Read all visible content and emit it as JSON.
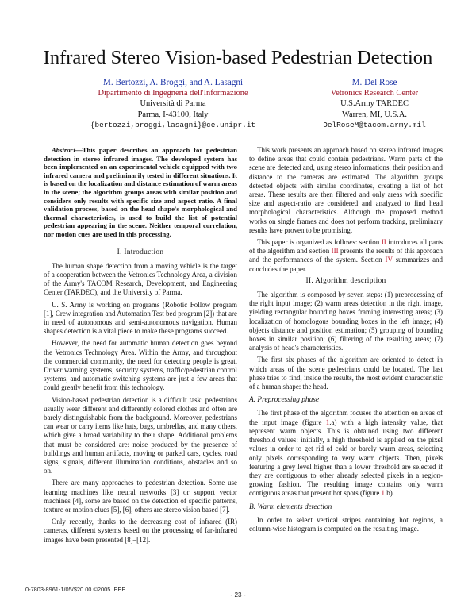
{
  "title": "Infrared Stereo Vision-based Pedestrian Detection",
  "authors_left": {
    "names": "M. Bertozzi, A. Broggi, and A. Lasagni",
    "dept": "Dipartimento di Ingegneria dell'Informazione",
    "univ": "Università di Parma",
    "city": "Parma, I-43100, Italy",
    "email": "{bertozzi,broggi,lasagni}@ce.unipr.it"
  },
  "authors_right": {
    "names": "M. Del Rose",
    "org": "Vetronics Research Center",
    "org2": "U.S.Army TARDEC",
    "city": "Warren, MI, U.S.A.",
    "email": "DelRoseM@tacom.army.mil"
  },
  "abstract": {
    "label": "Abstract",
    "text": "—This paper describes an approach for pedestrian detection in stereo infrared images. The developed system has been implemented on an experimental vehicle equipped with two infrared camera and preliminarily tested in different situations. It is based on the localization and distance estimation of warm areas in the scene; the algorithm groups areas with similar position and considers only results with specific size and aspect ratio. A final validation process, based on the head shape's morphological and thermal characteristics, is used to build the list of potential pedestrian appearing in the scene. Neither temporal correlation, nor motion cues are used in this processing."
  },
  "sec1": "I. Introduction",
  "intro": [
    "The human shape detection from a moving vehicle is the target of a cooperation between the Vetronics Technology Area, a division of the Army's TACOM Research, Development, and Engineering Center (TARDEC), and the University of Parma.",
    "U. S. Army is working on programs (Robotic Follow program [1], Crew integration and Automation Test bed program [2]) that are in need of autonomous and semi-autonomous navigation. Human shapes detection is a vital piece to make these programs succeed.",
    "However, the need for automatic human detection goes beyond the Vetronics Technology Area. Within the Army, and throughout the commercial community, the need for detecting people is great. Driver warning systems, security systems, traffic/pedestrian control systems, and automatic switching systems are just a few areas that could greatly benefit from this technology.",
    "Vision-based pedestrian detection is a difficult task: pedestrians usually wear different and differently colored clothes and often are barely distinguishable from the background. Moreover, pedestrians can wear or carry items like hats, bags, umbrellas, and many others, which give a broad variability to their shape. Additional problems that must be considered are: noise produced by the presence of buildings and human artifacts, moving or parked cars, cycles, road signs, signals, different illumination conditions, obstacles and so on.",
    "There are many approaches to pedestrian detection. Some use learning machines like neural networks [3] or support vector machines [4], some are based on the detection of specific patterns, texture or motion clues [5], [6], others are stereo vision based [7].",
    "Only recently, thanks to the decreasing cost of infrared (IR) cameras, different systems based on the processing of far-infrared images have been presented [8]–[12]."
  ],
  "right_intro": [
    "This work presents an approach based on stereo infrared images to define areas that could contain pedestrians. Warm parts of the scene are detected and, using stereo informations, their position and distance to the cameras are estimated. The algorithm groups detected objects with similar coordinates, creating a list of hot areas. These results are then filtered and only areas with specific size and aspect-ratio are considered and analyzed to find head morphological characteristics. Although the proposed method works on single frames and does not perform tracking, preliminary results have proven to be promising."
  ],
  "organized": {
    "a": "This paper is organized as follows: section ",
    "r1": "II",
    "b": " introduces all parts of the algorithm and section ",
    "r2": "III",
    "c": " presents the results of this approach and the performances of the system. Section ",
    "r3": "IV",
    "d": " summarizes and concludes the paper."
  },
  "sec2": "II. Algorithm description",
  "algo": [
    "The algorithm is composed by seven steps: (1) preprocessing of the right input image; (2) warm areas detection in the right image, yielding rectangular bounding boxes framing interesting areas; (3) localization of homologous bounding boxes in the left image; (4) objects distance and position estimation; (5) grouping of bounding boxes in similar position; (6) filtering of the resulting areas; (7) analysis of head's characteristics.",
    "The first six phases of the algorithm are oriented to detect in which areas of the scene pedestrians could be located. The last phase tries to find, inside the results, the most evident characteristic of a human shape: the head."
  ],
  "subA": "A. Preprocessing phase",
  "pre": {
    "a": "The first phase of the algorithm focuses the attention on areas of the input image (figure ",
    "r1": "1",
    "b": ".a) with a high intensity value, that represent warm objects. This is obtained using two different threshold values: initially, a high threshold is applied on the pixel values in order to get rid of cold or barely warm areas, selecting only pixels corresponding to very warm objects. Then, pixels featuring a grey level higher than a lower threshold are selected if they are contiguous to other already selected pixels in a region-growing fashion. The resulting image contains only warm contiguous areas that present hot spots (figure ",
    "r2": "1",
    "c": ".b)."
  },
  "subB": "B. Warm elements detection",
  "warm": "In order to select vertical stripes containing hot regions, a column-wise histogram is computed on the resulting image.",
  "footer_left": "0-7803-8961-1/05/$20.00 ©2005 IEEE.",
  "footer_page": "- 23 -"
}
